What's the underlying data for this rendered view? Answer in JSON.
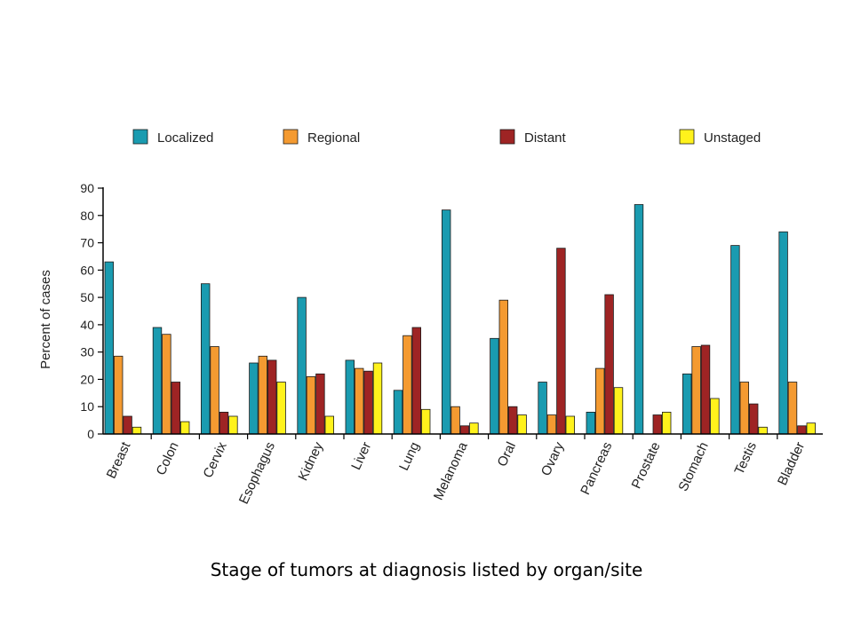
{
  "caption": "Stage of tumors at diagnosis listed by organ/site",
  "chart_data": {
    "type": "bar",
    "title": "",
    "xlabel": "",
    "ylabel": "Percent of cases",
    "ylim": [
      0,
      90
    ],
    "yticks": [
      0,
      10,
      20,
      30,
      40,
      50,
      60,
      70,
      80,
      90
    ],
    "grid": false,
    "legend_position": "top",
    "categories": [
      "Breast",
      "Colon",
      "Cervix",
      "Esophagus",
      "Kidney",
      "Liver",
      "Lung",
      "Melanoma",
      "Oral",
      "Ovary",
      "Pancreas",
      "Prostate",
      "Stomach",
      "Testis",
      "Bladder"
    ],
    "series": [
      {
        "name": "Localized",
        "color": "#1a9bb0",
        "values": [
          63,
          39,
          55,
          26,
          50,
          27,
          16,
          82,
          35,
          19,
          8,
          84,
          22,
          69,
          74
        ]
      },
      {
        "name": "Regional",
        "color": "#f49a31",
        "values": [
          28.5,
          36.5,
          32,
          28.5,
          21,
          24,
          36,
          10,
          49,
          7,
          24,
          0,
          32,
          19,
          19
        ]
      },
      {
        "name": "Distant",
        "color": "#9e2424",
        "values": [
          6.5,
          19,
          8,
          27,
          22,
          23,
          39,
          3,
          10,
          68,
          51,
          7,
          32.5,
          11,
          3
        ]
      },
      {
        "name": "Unstaged",
        "color": "#fff21c",
        "values": [
          2.5,
          4.5,
          6.5,
          19,
          6.5,
          26,
          9,
          4,
          7,
          6.5,
          17,
          8,
          13,
          2.5,
          4
        ]
      }
    ]
  }
}
